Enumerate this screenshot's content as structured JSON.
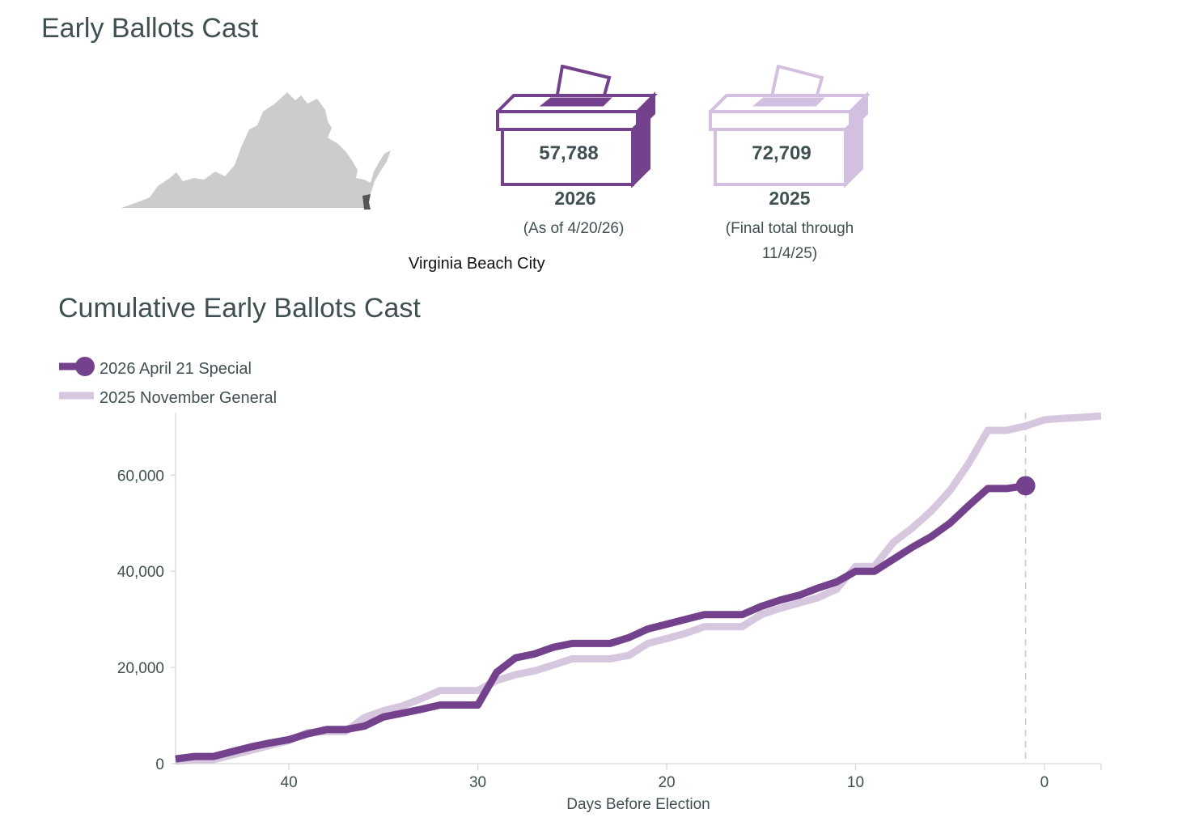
{
  "header": {
    "title": "Early Ballots Cast"
  },
  "map": {
    "label": "Virginia Beach City",
    "state_color": "#cccccc",
    "highlight_color": "#555555"
  },
  "boxes": [
    {
      "count": "57,788",
      "year": "2026",
      "note": "(As of 4/20/26)",
      "color": "#74428c"
    },
    {
      "count": "72,709",
      "year": "2025",
      "note": "(Final total through 11/4/25)",
      "color": "#d3bfdf"
    }
  ],
  "chart_title": "Cumulative Early Ballots Cast",
  "legend": [
    {
      "label": "2026 April 21 Special",
      "color": "#74428c"
    },
    {
      "label": "2025 November General",
      "color": "#d6c6de"
    }
  ],
  "chart_data": {
    "type": "line",
    "title": "Cumulative Early Ballots Cast",
    "xlabel": "Days Before Election",
    "ylabel": "",
    "xlim": [
      46,
      -3
    ],
    "ylim": [
      0,
      73000
    ],
    "x_ticks": [
      40,
      30,
      20,
      10,
      0
    ],
    "y_ticks": [
      0,
      20000,
      40000,
      60000
    ],
    "x_tick_labels": [
      "40",
      "30",
      "20",
      "10",
      "0"
    ],
    "y_tick_labels": [
      "0",
      "20,000",
      "40,000",
      "60,000"
    ],
    "reference_line_x": 1,
    "series": [
      {
        "name": "2026 April 21 Special",
        "color": "#74428c",
        "end_marker": true,
        "points": [
          [
            46,
            1000
          ],
          [
            45,
            1500
          ],
          [
            44,
            1500
          ],
          [
            43,
            2500
          ],
          [
            42,
            3500
          ],
          [
            41,
            4300
          ],
          [
            40,
            5000
          ],
          [
            39,
            6200
          ],
          [
            38,
            7100
          ],
          [
            37,
            7100
          ],
          [
            36,
            7800
          ],
          [
            35,
            9700
          ],
          [
            34,
            10500
          ],
          [
            33,
            11300
          ],
          [
            32,
            12200
          ],
          [
            31,
            12200
          ],
          [
            30,
            12200
          ],
          [
            29,
            19000
          ],
          [
            28,
            22000
          ],
          [
            27,
            22800
          ],
          [
            26,
            24200
          ],
          [
            25,
            25000
          ],
          [
            24,
            25000
          ],
          [
            23,
            25000
          ],
          [
            22,
            26200
          ],
          [
            21,
            28000
          ],
          [
            20,
            29000
          ],
          [
            19,
            30000
          ],
          [
            18,
            31000
          ],
          [
            17,
            31000
          ],
          [
            16,
            31000
          ],
          [
            15,
            32700
          ],
          [
            14,
            34000
          ],
          [
            13,
            35000
          ],
          [
            12,
            36500
          ],
          [
            11,
            37800
          ],
          [
            10,
            40000
          ],
          [
            9,
            40000
          ],
          [
            8,
            42500
          ],
          [
            7,
            45000
          ],
          [
            6,
            47200
          ],
          [
            5,
            50000
          ],
          [
            4,
            53700
          ],
          [
            3,
            57200
          ],
          [
            2,
            57200
          ],
          [
            1,
            57788
          ]
        ]
      },
      {
        "name": "2025 November General",
        "color": "#d6c6de",
        "end_marker": false,
        "points": [
          [
            46,
            500
          ],
          [
            45,
            800
          ],
          [
            44,
            800
          ],
          [
            43,
            1800
          ],
          [
            42,
            2800
          ],
          [
            41,
            3800
          ],
          [
            40,
            4800
          ],
          [
            39,
            6500
          ],
          [
            38,
            6700
          ],
          [
            37,
            6700
          ],
          [
            36,
            9600
          ],
          [
            35,
            11000
          ],
          [
            34,
            12000
          ],
          [
            33,
            13500
          ],
          [
            32,
            15200
          ],
          [
            31,
            15200
          ],
          [
            30,
            15200
          ],
          [
            29,
            17300
          ],
          [
            28,
            18500
          ],
          [
            27,
            19300
          ],
          [
            26,
            20500
          ],
          [
            25,
            21800
          ],
          [
            24,
            21800
          ],
          [
            23,
            21800
          ],
          [
            22,
            22500
          ],
          [
            21,
            25000
          ],
          [
            20,
            26000
          ],
          [
            19,
            27100
          ],
          [
            18,
            28500
          ],
          [
            17,
            28500
          ],
          [
            16,
            28500
          ],
          [
            15,
            31000
          ],
          [
            14,
            32300
          ],
          [
            13,
            33400
          ],
          [
            12,
            34500
          ],
          [
            11,
            36300
          ],
          [
            10,
            41000
          ],
          [
            9,
            41000
          ],
          [
            8,
            46000
          ],
          [
            7,
            49000
          ],
          [
            6,
            52500
          ],
          [
            5,
            56800
          ],
          [
            4,
            62500
          ],
          [
            3,
            69300
          ],
          [
            2,
            69300
          ],
          [
            1,
            70200
          ],
          [
            0,
            71500
          ],
          [
            -1,
            71800
          ],
          [
            -2,
            72000
          ],
          [
            -3,
            72300
          ]
        ]
      }
    ]
  }
}
